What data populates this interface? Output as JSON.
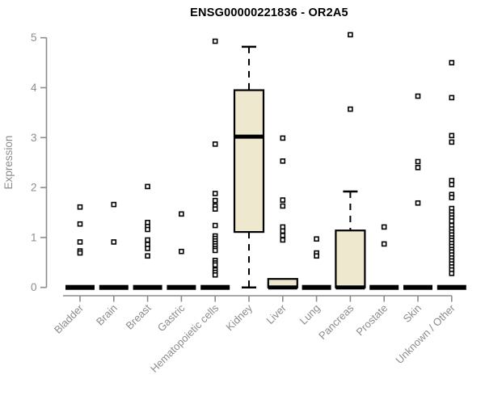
{
  "chart_data": {
    "type": "boxplot",
    "title": "ENSG00000221836 - OR2A5",
    "ylabel": "Expression",
    "xlabel": "",
    "ylim": [
      0,
      5.15
    ],
    "yticks": [
      0,
      1,
      2,
      3,
      4,
      5
    ],
    "grid": false,
    "legend": "none",
    "categories": [
      "Bladder",
      "Brain",
      "Breast",
      "Gastric",
      "Hematopoietic cells",
      "Kidney",
      "Liver",
      "Lung",
      "Pancreas",
      "Prostate",
      "Skin",
      "Unknown / Other"
    ],
    "colors": {
      "box_fill": "#EDE8CE",
      "box_stroke": "#000000",
      "axis": "#8c8c8c",
      "label": "#8c8c8c",
      "title": "#000000",
      "background": "#ffffff"
    },
    "boxes": [
      {
        "category": "Bladder",
        "q1": 0,
        "median": 0,
        "q3": 0,
        "whisker_low": 0,
        "whisker_high": 0,
        "outliers": [
          1.61,
          1.27,
          0.91,
          0.73,
          0.69
        ]
      },
      {
        "category": "Brain",
        "q1": 0,
        "median": 0,
        "q3": 0,
        "whisker_low": 0,
        "whisker_high": 0,
        "outliers": [
          1.66,
          0.91
        ]
      },
      {
        "category": "Breast",
        "q1": 0,
        "median": 0,
        "q3": 0,
        "whisker_low": 0,
        "whisker_high": 0,
        "outliers": [
          2.02,
          1.3,
          1.22,
          1.16,
          0.95,
          0.86,
          0.78,
          0.63
        ]
      },
      {
        "category": "Gastric",
        "q1": 0,
        "median": 0,
        "q3": 0,
        "whisker_low": 0,
        "whisker_high": 0,
        "outliers": [
          1.47,
          0.72
        ]
      },
      {
        "category": "Hematopoietic cells",
        "q1": 0,
        "median": 0,
        "q3": 0,
        "whisker_low": 0,
        "whisker_high": 0,
        "outliers": [
          4.93,
          2.87,
          1.88,
          1.74,
          1.63,
          1.57,
          1.24,
          1.03,
          0.98,
          0.93,
          0.88,
          0.83,
          0.78,
          0.74,
          0.54,
          0.49,
          0.45,
          0.35,
          0.3,
          0.25
        ]
      },
      {
        "category": "Kidney",
        "q1": 1.11,
        "median": 3.02,
        "q3": 3.95,
        "whisker_low": 0,
        "whisker_high": 4.82,
        "outliers": []
      },
      {
        "category": "Liver",
        "q1": 0,
        "median": 0,
        "q3": 0.17,
        "whisker_low": 0,
        "whisker_high": 0.17,
        "outliers": [
          2.99,
          2.53,
          1.75,
          1.63,
          1.21,
          1.13,
          1.04,
          0.95
        ]
      },
      {
        "category": "Lung",
        "q1": 0,
        "median": 0,
        "q3": 0,
        "whisker_low": 0,
        "whisker_high": 0,
        "outliers": [
          0.97,
          0.69,
          0.63
        ]
      },
      {
        "category": "Pancreas",
        "q1": 0,
        "median": 0,
        "q3": 1.14,
        "whisker_low": 0,
        "whisker_high": 1.92,
        "outliers": [
          5.06,
          3.57
        ]
      },
      {
        "category": "Prostate",
        "q1": 0,
        "median": 0,
        "q3": 0,
        "whisker_low": 0,
        "whisker_high": 0,
        "outliers": [
          1.21,
          0.87
        ]
      },
      {
        "category": "Skin",
        "q1": 0,
        "median": 0,
        "q3": 0,
        "whisker_low": 0,
        "whisker_high": 0,
        "outliers": [
          3.83,
          2.52,
          2.4,
          1.69
        ]
      },
      {
        "category": "Unknown / Other",
        "q1": 0,
        "median": 0,
        "q3": 0,
        "whisker_low": 0,
        "whisker_high": 0,
        "outliers": [
          4.5,
          3.8,
          3.04,
          2.91,
          2.14,
          2.06,
          1.86,
          1.8,
          1.58,
          1.51,
          1.45,
          1.39,
          1.33,
          1.24,
          1.17,
          1.11,
          1.05,
          0.99,
          0.94,
          0.88,
          0.82,
          0.76,
          0.71,
          0.65,
          0.59,
          0.53,
          0.47,
          0.41,
          0.35,
          0.28
        ]
      }
    ]
  }
}
